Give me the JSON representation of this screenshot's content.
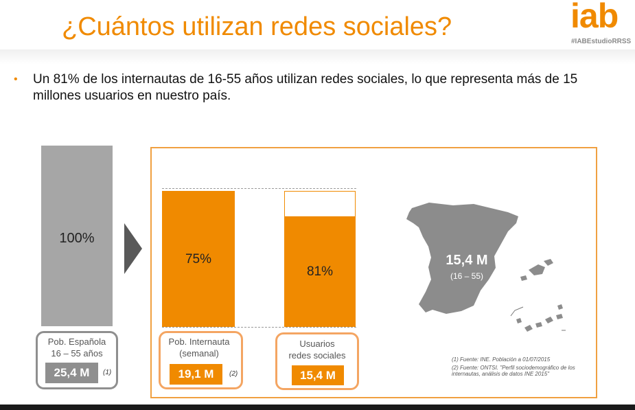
{
  "slide": {
    "title": "¿Cuántos utilizan redes sociales?",
    "logo": {
      "text": "iab",
      "hashtag": "#IABEstudioRRSS"
    },
    "bullet": {
      "marker": "•",
      "text": "Un 81% de los internautas de 16-55 años utilizan redes sociales, lo que representa más de 15 millones usuarios en nuestro país."
    }
  },
  "chart_data": {
    "type": "bar",
    "categories": [
      "Pob. Española 16 – 55 años",
      "Pob. Internauta (semanal)",
      "Usuarios redes sociales"
    ],
    "series": [
      {
        "values": [
          100,
          75,
          81
        ]
      }
    ],
    "percent_labels": [
      "100%",
      "75%",
      "81%"
    ],
    "totals": [
      "25,4 M",
      "19,1 M",
      "15,4 M"
    ],
    "colors": {
      "total": "#a6a6a6",
      "highlight": "#f08a00",
      "frame": "#f0a040"
    }
  },
  "boxes": {
    "total": {
      "label_line1": "Pob. Española",
      "label_line2": "16 – 55 años",
      "value": "25,4 M",
      "note": "(1)"
    },
    "internet": {
      "label_line1": "Pob. Internauta",
      "label_line2": "(semanal)",
      "value": "19,1 M",
      "note": "(2)"
    },
    "social": {
      "label_line1": "Usuarios",
      "label_line2": "redes sociales",
      "value": "15,4 M"
    }
  },
  "map": {
    "value": "15,4 M",
    "range": "(16 – 55)"
  },
  "sources": {
    "note1": "(1) Fuente: INE. Población a 01/07/2015",
    "note2": "(2) Fuente: ONTSI. \"Perfil sociodemográfico de los internautas, análisis de datos INE 2015\""
  }
}
